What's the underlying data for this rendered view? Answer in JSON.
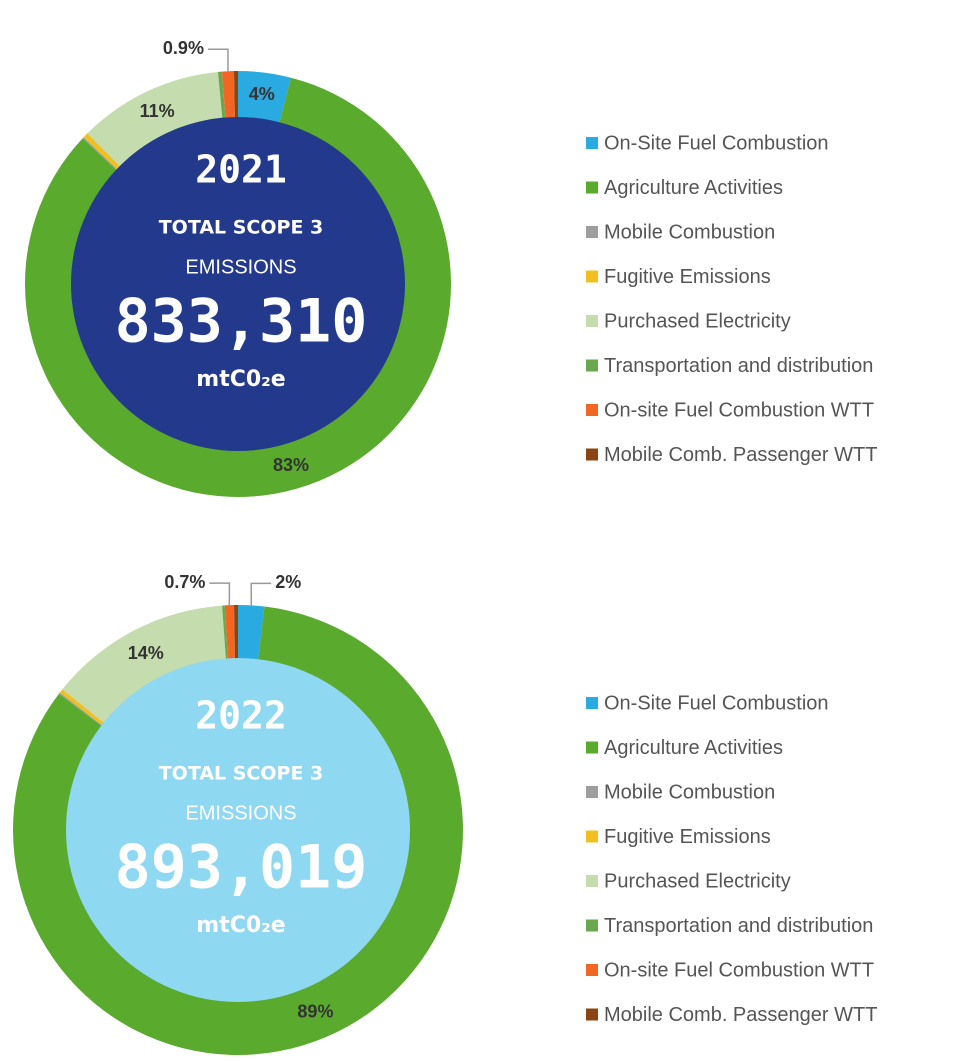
{
  "chart_data": [
    {
      "type": "pie",
      "title": "2021",
      "subtitle": "TOTAL SCOPE 3",
      "subtitle2": "EMISSIONS",
      "total": "833,310",
      "unit": "mtC0₂e",
      "center_color": "#233a8c",
      "categories": [
        "On-Site Fuel Combustion",
        "Agriculture Activities",
        "Mobile Combustion",
        "Fugitive Emissions",
        "Purchased Electricity",
        "Transportation and distribution",
        "On-site Fuel Combustion WTT",
        "Mobile Comb. Passenger WTT"
      ],
      "values": [
        4,
        83,
        0.1,
        0.4,
        11,
        0.3,
        0.9,
        0.3
      ],
      "value_labels": [
        "4%",
        "83%",
        null,
        null,
        "11%",
        null,
        "0.9%",
        null
      ],
      "colors": [
        "#29aae1",
        "#5aaa2d",
        "#9e9e9e",
        "#f2c01e",
        "#c4dcae",
        "#6aa84f",
        "#f26522",
        "#8b4513"
      ]
    },
    {
      "type": "pie",
      "title": "2022",
      "subtitle": "TOTAL SCOPE 3",
      "subtitle2": "EMISSIONS",
      "total": "893,019",
      "unit": "mtC0₂e",
      "center_color": "#8fd8f2",
      "categories": [
        "On-Site Fuel Combustion",
        "Agriculture Activities",
        "Mobile Combustion",
        "Fugitive Emissions",
        "Purchased Electricity",
        "Transportation and distribution",
        "On-site Fuel Combustion WTT",
        "Mobile Comb. Passenger WTT"
      ],
      "values": [
        2,
        89,
        0.1,
        0.3,
        14,
        0.2,
        0.7,
        0.3
      ],
      "value_labels": [
        "2%",
        "89%",
        null,
        null,
        "14%",
        null,
        "0.7%",
        null
      ],
      "colors": [
        "#29aae1",
        "#5aaa2d",
        "#9e9e9e",
        "#f2c01e",
        "#c4dcae",
        "#6aa84f",
        "#f26522",
        "#8b4513"
      ]
    }
  ]
}
